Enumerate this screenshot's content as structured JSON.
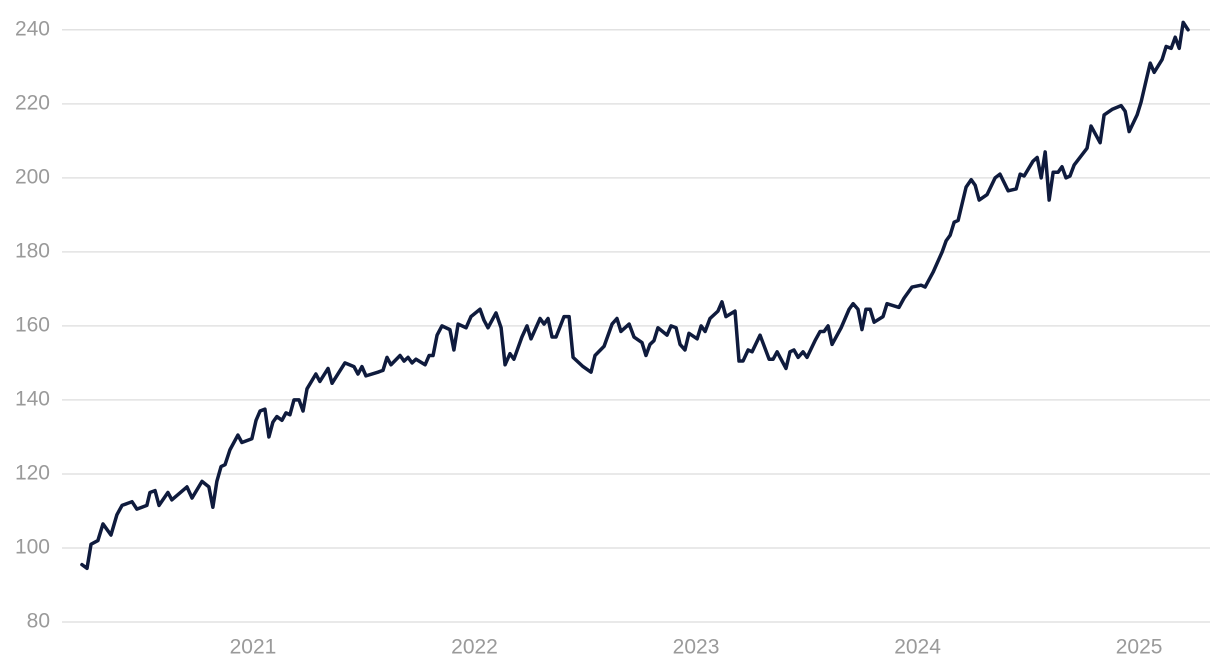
{
  "chart_data": {
    "type": "line",
    "grid": true,
    "xlim": [
      2020.138,
      2025.32
    ],
    "xticks": [
      2021,
      2022,
      2023,
      2024,
      2025
    ],
    "ylim": [
      80,
      244
    ],
    "yticks": [
      80,
      100,
      120,
      140,
      160,
      180,
      200,
      220,
      240
    ],
    "x": [
      2020.228,
      2020.251,
      2020.269,
      2020.3,
      2020.323,
      2020.359,
      2020.386,
      2020.409,
      2020.454,
      2020.476,
      2020.521,
      2020.535,
      2020.558,
      2020.576,
      2020.616,
      2020.634,
      2020.702,
      2020.725,
      2020.77,
      2020.801,
      2020.819,
      2020.837,
      2020.856,
      2020.874,
      2020.896,
      2020.932,
      2020.95,
      2020.995,
      2021.014,
      2021.032,
      2021.054,
      2021.072,
      2021.09,
      2021.108,
      2021.131,
      2021.149,
      2021.167,
      2021.185,
      2021.208,
      2021.226,
      2021.244,
      2021.284,
      2021.302,
      2021.339,
      2021.357,
      2021.415,
      2021.456,
      2021.474,
      2021.492,
      2021.51,
      2021.564,
      2021.587,
      2021.605,
      2021.623,
      2021.664,
      2021.682,
      2021.7,
      2021.718,
      2021.736,
      2021.777,
      2021.795,
      2021.813,
      2021.831,
      2021.853,
      2021.889,
      2021.907,
      2021.926,
      2021.962,
      2021.984,
      2022.025,
      2022.043,
      2022.061,
      2022.097,
      2022.12,
      2022.138,
      2022.16,
      2022.178,
      2022.214,
      2022.237,
      2022.255,
      2022.296,
      2022.314,
      2022.332,
      2022.35,
      2022.368,
      2022.404,
      2022.427,
      2022.445,
      2022.49,
      2022.526,
      2022.544,
      2022.585,
      2022.621,
      2022.643,
      2022.661,
      2022.698,
      2022.72,
      2022.756,
      2022.774,
      2022.792,
      2022.81,
      2022.828,
      2022.869,
      2022.887,
      2022.91,
      2022.928,
      2022.95,
      2022.968,
      2023.005,
      2023.023,
      2023.041,
      2023.063,
      2023.099,
      2023.117,
      2023.135,
      2023.176,
      2023.194,
      2023.212,
      2023.235,
      2023.253,
      2023.289,
      2023.33,
      2023.348,
      2023.366,
      2023.406,
      2023.424,
      2023.442,
      2023.461,
      2023.483,
      2023.501,
      2023.537,
      2023.56,
      2023.578,
      2023.596,
      2023.614,
      2023.655,
      2023.691,
      2023.709,
      2023.731,
      2023.749,
      2023.767,
      2023.786,
      2023.804,
      2023.844,
      2023.862,
      2023.916,
      2023.939,
      2023.975,
      2024.016,
      2024.034,
      2024.07,
      2024.111,
      2024.129,
      2024.147,
      2024.165,
      2024.183,
      2024.201,
      2024.219,
      2024.242,
      2024.26,
      2024.278,
      2024.314,
      2024.35,
      2024.372,
      2024.409,
      2024.445,
      2024.463,
      2024.481,
      2024.521,
      2024.54,
      2024.558,
      2024.576,
      2024.594,
      2024.612,
      2024.634,
      2024.652,
      2024.67,
      2024.688,
      2024.707,
      2024.765,
      2024.783,
      2024.824,
      2024.842,
      2024.878,
      2024.919,
      2024.937,
      2024.955,
      2024.991,
      2025.009,
      2025.05,
      2025.068,
      2025.104,
      2025.122,
      2025.145,
      2025.163,
      2025.181,
      2025.199,
      2025.221
    ],
    "series": [
      {
        "color": "#0f1b3d",
        "values": [
          95.5,
          94.5,
          101,
          102,
          106.5,
          103.5,
          109,
          111.5,
          112.5,
          110.5,
          111.5,
          115,
          115.5,
          111.5,
          115,
          113,
          116.5,
          113.5,
          118,
          116.5,
          111,
          118,
          122,
          122.5,
          126.5,
          130.5,
          128.5,
          129.5,
          134.5,
          137,
          137.5,
          130,
          134,
          135.5,
          134.5,
          136.5,
          136,
          140,
          140,
          137,
          143,
          147,
          145,
          148.5,
          144.5,
          150,
          149,
          147,
          149,
          146.5,
          147.5,
          148,
          151.5,
          149.5,
          152,
          150.5,
          151.5,
          150,
          151,
          149.5,
          152,
          152,
          157.5,
          160,
          159,
          153.5,
          160.5,
          159.5,
          162.5,
          164.5,
          161.5,
          159.5,
          163.5,
          159.5,
          149.5,
          152.5,
          151,
          157,
          160,
          156.5,
          162,
          160.5,
          162,
          157,
          157,
          162.5,
          162.5,
          151.5,
          149,
          147.5,
          152,
          154.5,
          160.5,
          162,
          158.5,
          160.5,
          157,
          155.5,
          152,
          155,
          156,
          159.5,
          157.5,
          160,
          159.5,
          155,
          153.5,
          158,
          156.5,
          160,
          158.5,
          162,
          164,
          166.5,
          162.5,
          164,
          150.5,
          150.5,
          153.5,
          153,
          157.5,
          151,
          151,
          153,
          148.5,
          153,
          153.5,
          151.5,
          153,
          151.5,
          156,
          158.5,
          158.5,
          160,
          155,
          159.5,
          164.5,
          166,
          164.5,
          159,
          164.5,
          164.5,
          161,
          162.5,
          166,
          165,
          167.5,
          170.5,
          171,
          170.5,
          174.5,
          180,
          183,
          184.5,
          188,
          188.5,
          193,
          197.5,
          199.5,
          198,
          194,
          195.5,
          200,
          201,
          196.5,
          197,
          201,
          200.5,
          204.5,
          205.5,
          200,
          207,
          194,
          201.5,
          201.5,
          203,
          200,
          200.5,
          203.5,
          208,
          214,
          209.5,
          217,
          218.5,
          219.5,
          218,
          212.5,
          217,
          220.5,
          231,
          228.5,
          232,
          235.5,
          235,
          238,
          235,
          242,
          240
        ]
      }
    ]
  }
}
